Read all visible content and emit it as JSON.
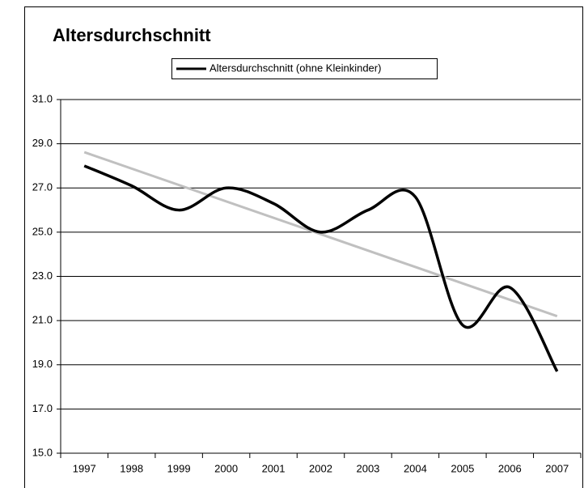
{
  "chart_data": {
    "type": "line",
    "title": "Altersdurchschnitt",
    "categories": [
      "1997",
      "1998",
      "1999",
      "2000",
      "2001",
      "2002",
      "2003",
      "2004",
      "2005",
      "2006",
      "2007"
    ],
    "series": [
      {
        "name": "Altersdurchschnitt (ohne Kleinkinder)",
        "color": "#000000",
        "values": [
          28.0,
          27.1,
          26.0,
          27.0,
          26.3,
          25.0,
          26.0,
          26.6,
          20.8,
          22.5,
          18.7
        ]
      }
    ],
    "trendline": "linear",
    "trendline_color": "#c0c0c0",
    "ylim": [
      15,
      31
    ],
    "yticks": [
      {
        "value": 15,
        "label": "15.0"
      },
      {
        "value": 17,
        "label": "17.0"
      },
      {
        "value": 19,
        "label": "19.0"
      },
      {
        "value": 21,
        "label": "21.0"
      },
      {
        "value": 23,
        "label": "23.0"
      },
      {
        "value": 25,
        "label": "25.0"
      },
      {
        "value": 27,
        "label": "27.0"
      },
      {
        "value": 29,
        "label": "29.0"
      },
      {
        "value": 31,
        "label": "31.0"
      }
    ],
    "grid": true,
    "legend": "top"
  }
}
